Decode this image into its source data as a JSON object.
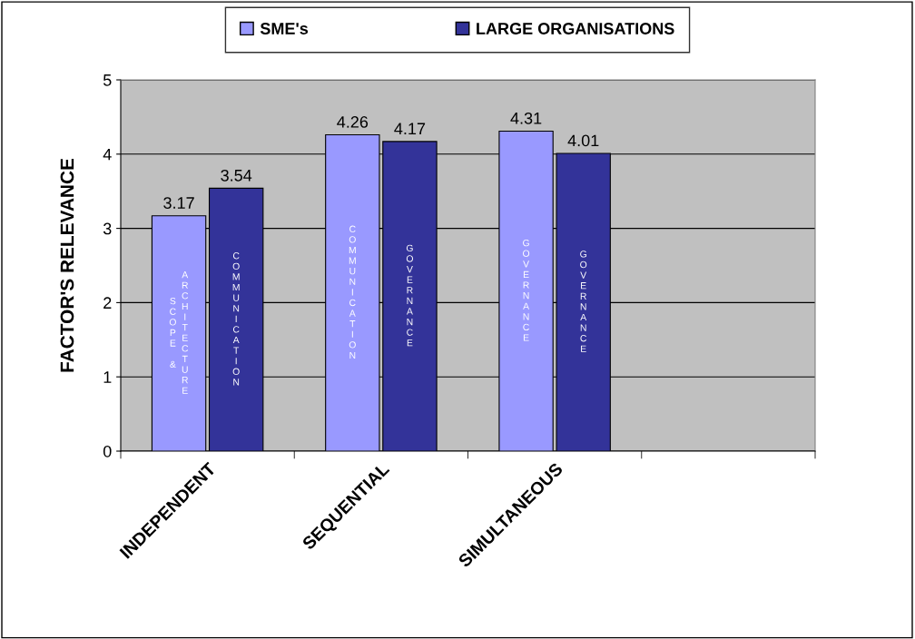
{
  "chart_data": {
    "type": "bar",
    "ylabel": "FACTOR'S RELEVANCE",
    "categories": [
      "INDEPENDENT",
      "SEQUENTIAL",
      "SIMULTANEOUS",
      null
    ],
    "series": [
      {
        "name": "SME's",
        "color": "#9999ff",
        "values": [
          3.17,
          4.26,
          4.31,
          null
        ]
      },
      {
        "name": "LARGE ORGANISATIONS",
        "color": "#333399",
        "values": [
          3.54,
          4.17,
          4.01,
          null
        ]
      }
    ],
    "annotations": [
      "SCOPE & ARCHITECTURE",
      "COMMUNICATION",
      "COMMUNICATION",
      "GOVERNANCE",
      "GOVERNANCE",
      "GOVERNANCE"
    ],
    "ylim": [
      0,
      5
    ],
    "yticks": [
      0,
      1,
      2,
      3,
      4,
      5
    ],
    "grid": "y",
    "legend": "top",
    "data_labels": true
  }
}
